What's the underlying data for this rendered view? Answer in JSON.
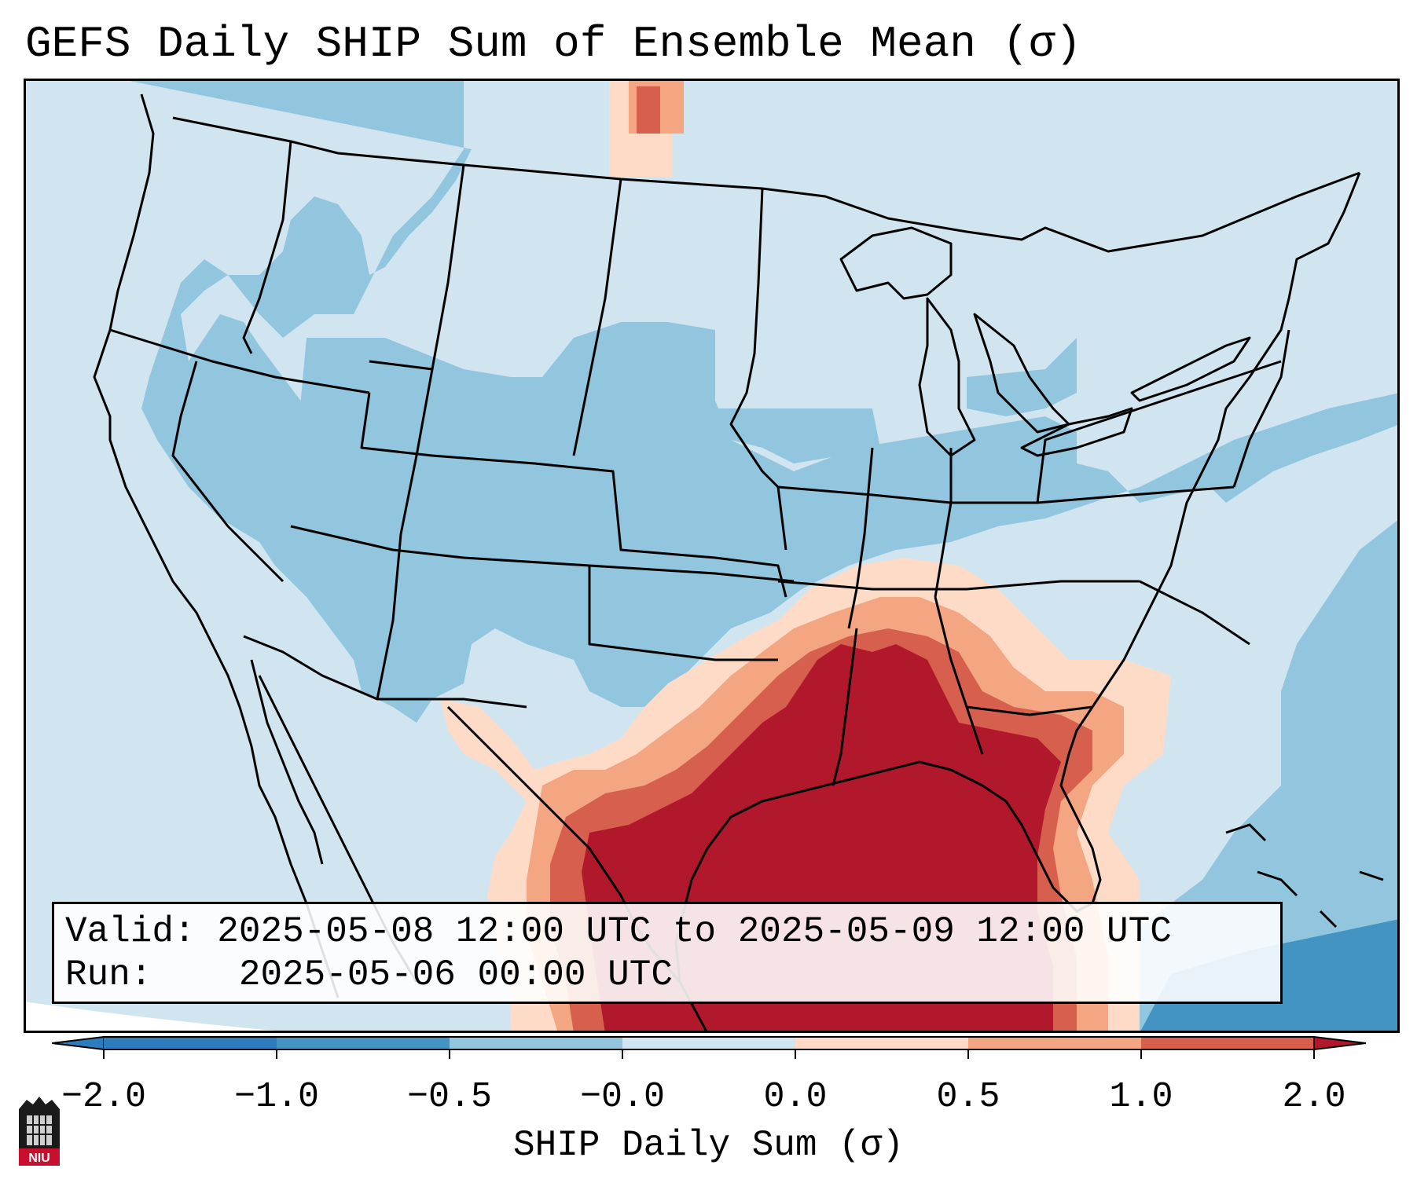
{
  "title": "GEFS Daily SHIP Sum of Ensemble Mean (σ)",
  "info": {
    "valid_label": "Valid:",
    "valid_value": "2025-05-08 12:00 UTC to 2025-05-09 12:00 UTC",
    "run_label": "Run:",
    "run_value": "2025-05-06 00:00 UTC"
  },
  "colorbar": {
    "label": "SHIP Daily Sum (σ)",
    "ticks": [
      "−2.0",
      "−1.0",
      "−0.5",
      "−0.0",
      "0.0",
      "0.5",
      "1.0",
      "2.0"
    ],
    "colors": [
      "#2e7cbd",
      "#4393c3",
      "#92c5de",
      "#d1e5f0",
      "#fddbc7",
      "#f4a582",
      "#d6604d",
      "#b2182b"
    ]
  },
  "logo": {
    "text": "NIU"
  }
}
